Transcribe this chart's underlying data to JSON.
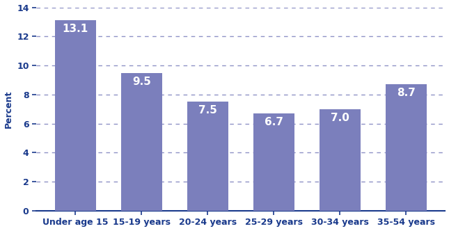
{
  "categories": [
    "Under age 15",
    "15-19 years",
    "20-24 years",
    "25-29 years",
    "30-34 years",
    "35-54 years"
  ],
  "values": [
    13.1,
    9.5,
    7.5,
    6.7,
    7.0,
    8.7
  ],
  "bar_color": "#7b7fbc",
  "label_color": "#ffffff",
  "axis_color": "#1a3a8c",
  "tick_label_color": "#1a3a8c",
  "ylabel": "Percent",
  "ylim": [
    0,
    14
  ],
  "yticks": [
    0,
    2,
    4,
    6,
    8,
    10,
    12,
    14
  ],
  "grid_color": "#7b7fbc",
  "label_fontsize": 11,
  "tick_fontsize": 9,
  "ylabel_fontsize": 9
}
